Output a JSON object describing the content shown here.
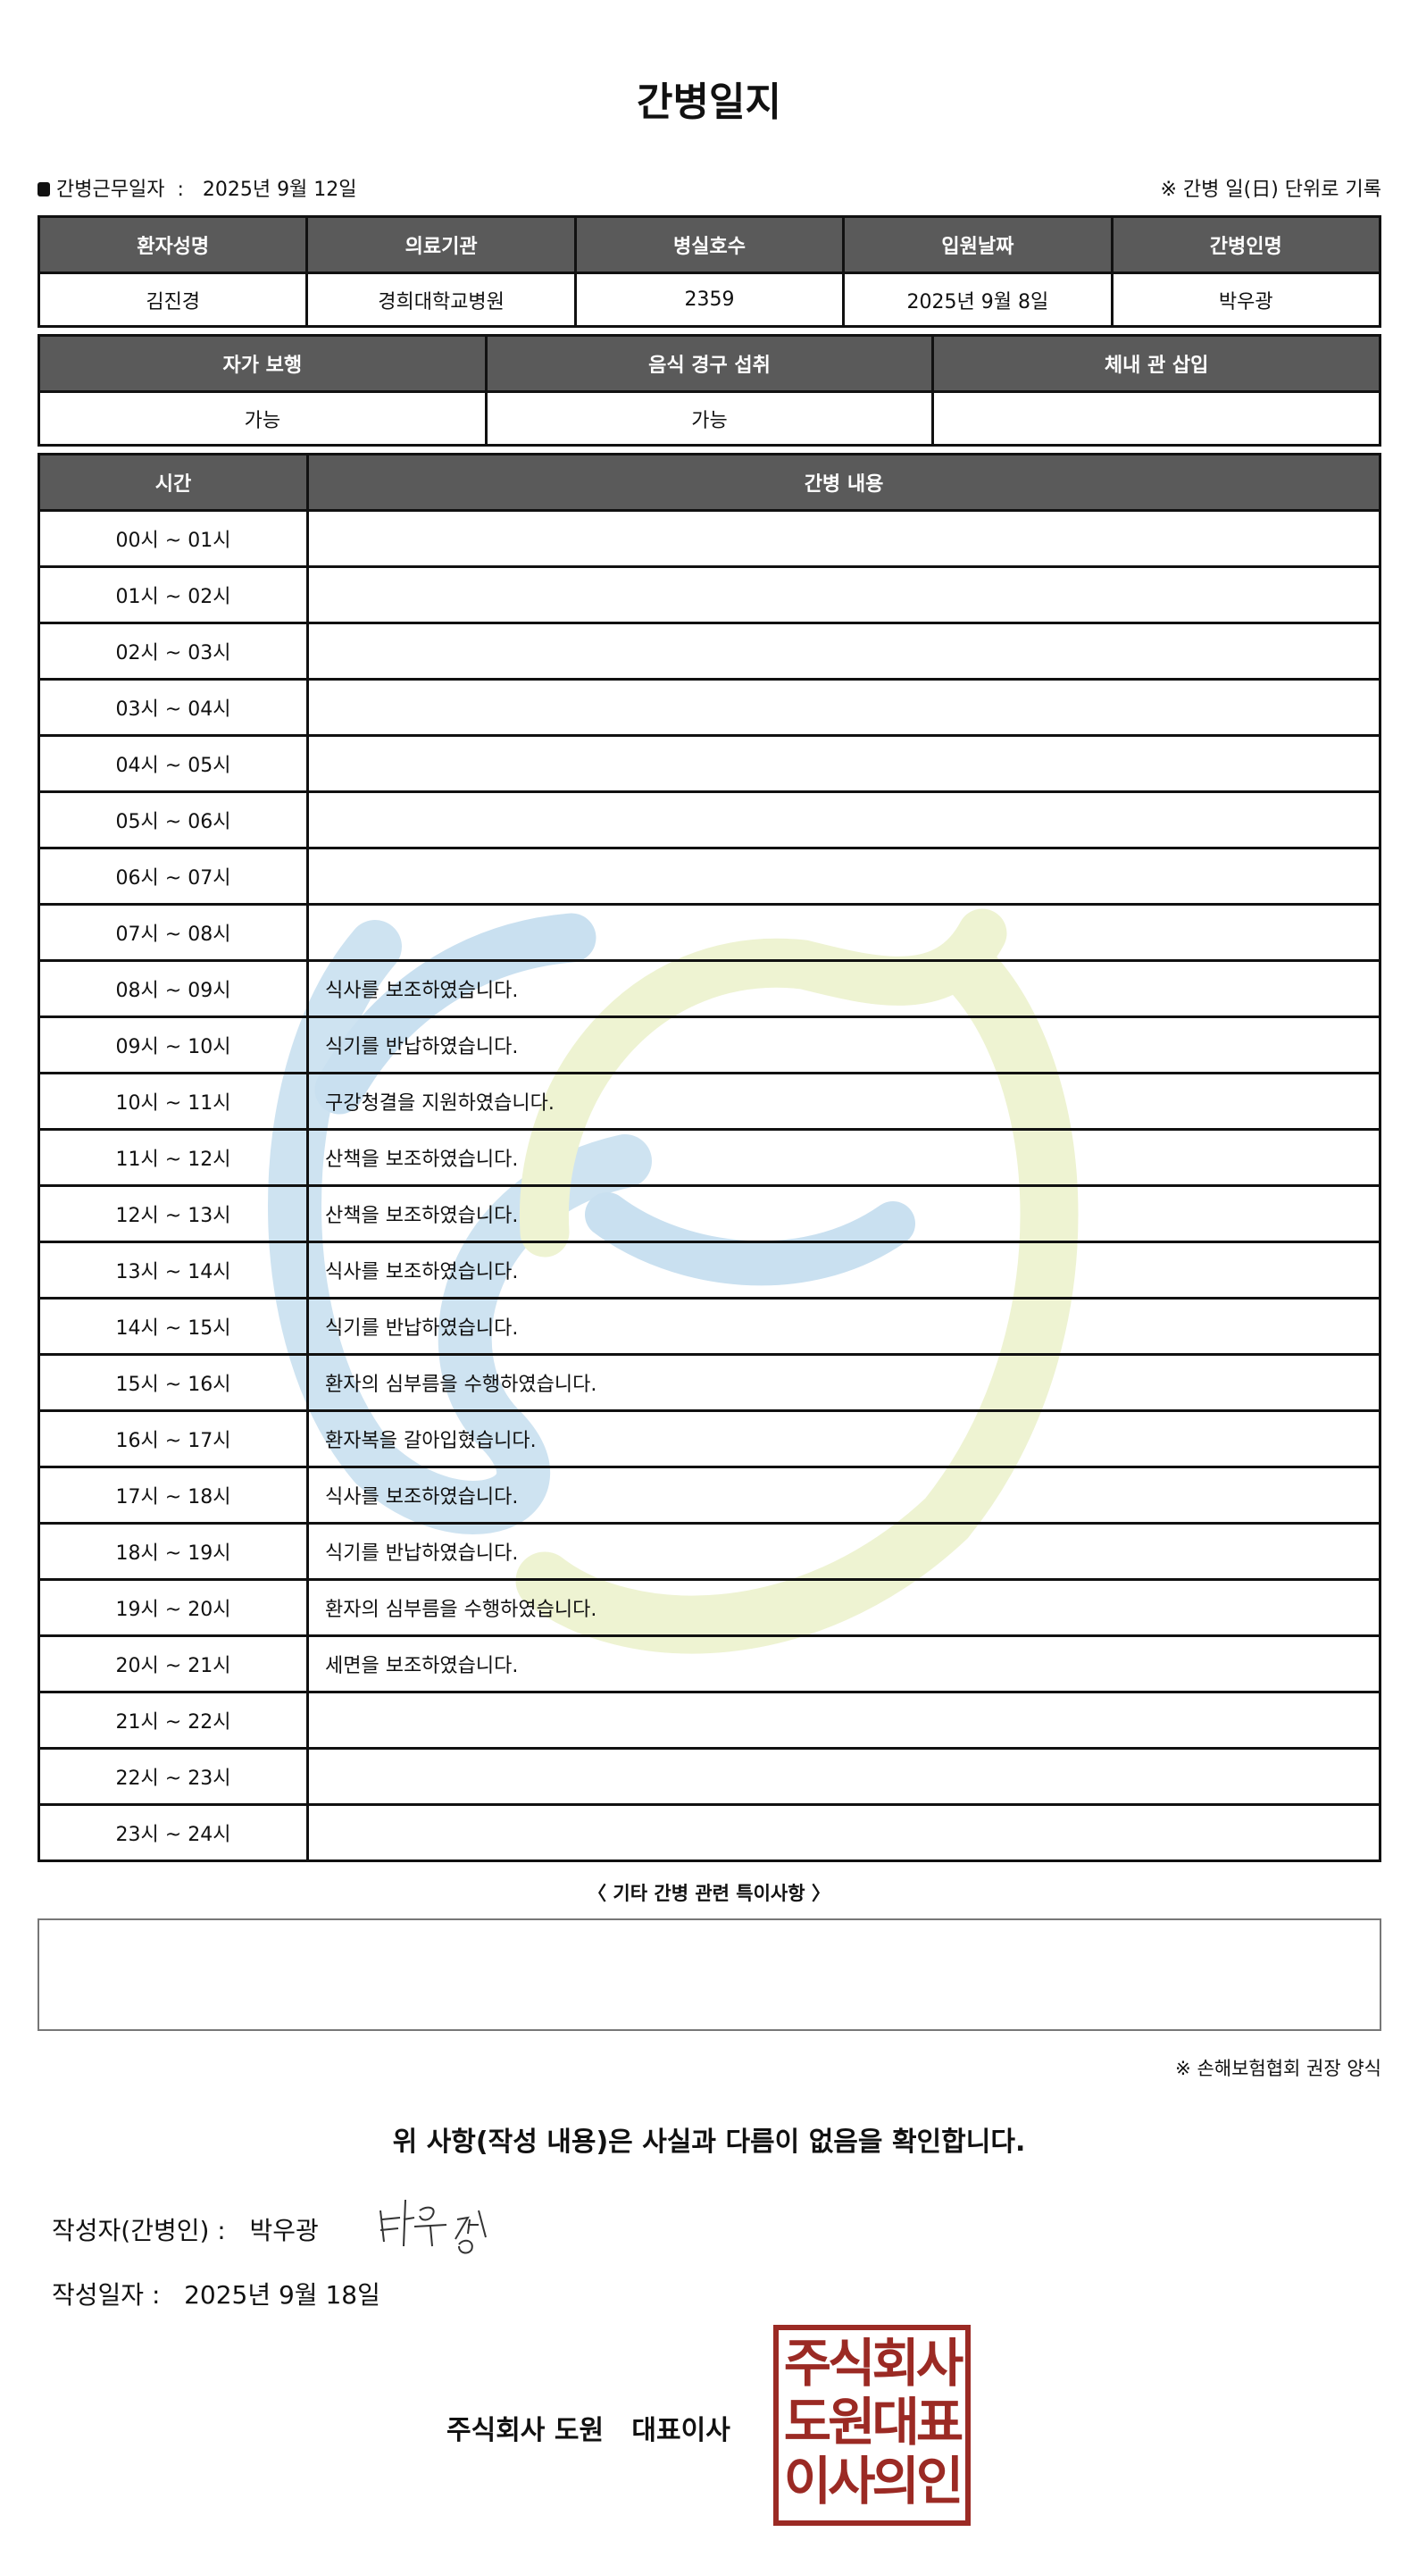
{
  "title": "간병일지",
  "work_date_label": "간병근무일자",
  "work_date": "2025년 9월 12일",
  "daily_note": "※ 간병 일(日) 단위로 기록",
  "info_headers": [
    "환자성명",
    "의료기관",
    "병실호수",
    "입원날짜",
    "간병인명"
  ],
  "info_values": [
    "김진경",
    "경희대학교병원",
    "2359",
    "2025년 9월 8일",
    "박우광"
  ],
  "status_headers": [
    "자가 보행",
    "음식 경구 섭취",
    "체내 관 삽입"
  ],
  "status_values": [
    "가능",
    "가능",
    ""
  ],
  "log_headers": [
    "시간",
    "간병 내용"
  ],
  "log": [
    {
      "time": "00시 ~ 01시",
      "content": ""
    },
    {
      "time": "01시 ~ 02시",
      "content": ""
    },
    {
      "time": "02시 ~ 03시",
      "content": ""
    },
    {
      "time": "03시 ~ 04시",
      "content": ""
    },
    {
      "time": "04시 ~ 05시",
      "content": ""
    },
    {
      "time": "05시 ~ 06시",
      "content": ""
    },
    {
      "time": "06시 ~ 07시",
      "content": ""
    },
    {
      "time": "07시 ~ 08시",
      "content": ""
    },
    {
      "time": "08시 ~ 09시",
      "content": "식사를 보조하였습니다."
    },
    {
      "time": "09시 ~ 10시",
      "content": "식기를 반납하였습니다."
    },
    {
      "time": "10시 ~ 11시",
      "content": "구강청결을 지원하였습니다."
    },
    {
      "time": "11시 ~ 12시",
      "content": "산책을 보조하였습니다."
    },
    {
      "time": "12시 ~ 13시",
      "content": "산책을 보조하였습니다."
    },
    {
      "time": "13시 ~ 14시",
      "content": "식사를 보조하였습니다."
    },
    {
      "time": "14시 ~ 15시",
      "content": "식기를 반납하였습니다."
    },
    {
      "time": "15시 ~ 16시",
      "content": "환자의 심부름을 수행하였습니다."
    },
    {
      "time": "16시 ~ 17시",
      "content": "환자복을 갈아입혔습니다."
    },
    {
      "time": "17시 ~ 18시",
      "content": "식사를 보조하였습니다."
    },
    {
      "time": "18시 ~ 19시",
      "content": "식기를 반납하였습니다."
    },
    {
      "time": "19시 ~ 20시",
      "content": "환자의 심부름을 수행하였습니다."
    },
    {
      "time": "20시 ~ 21시",
      "content": "세면을 보조하였습니다."
    },
    {
      "time": "21시 ~ 22시",
      "content": ""
    },
    {
      "time": "22시 ~ 23시",
      "content": ""
    },
    {
      "time": "23시 ~ 24시",
      "content": ""
    }
  ],
  "notes_label": "〈 기타 간병 관련 특이사항 〉",
  "notes": "",
  "form_source": "※ 손해보험협회 권장 양식",
  "statement": "위 사항(작성 내용)은 사실과 다름이 없음을 확인합니다.",
  "author_label": "작성자(간병인) :",
  "author": "박우광",
  "signature": "박우광",
  "written_date_label": "작성일자 :",
  "written_date": "2025년 9월 18일",
  "company": "주식회사 도원",
  "ceo_label": "대표이사",
  "stamp_text": "주식회사 도원대표 이사의인",
  "colors": {
    "header_bg": "#5a5a5a",
    "stamp": "#9b2a24",
    "watermark_blue": "#c9e0f0",
    "watermark_green": "#eef3d2"
  }
}
